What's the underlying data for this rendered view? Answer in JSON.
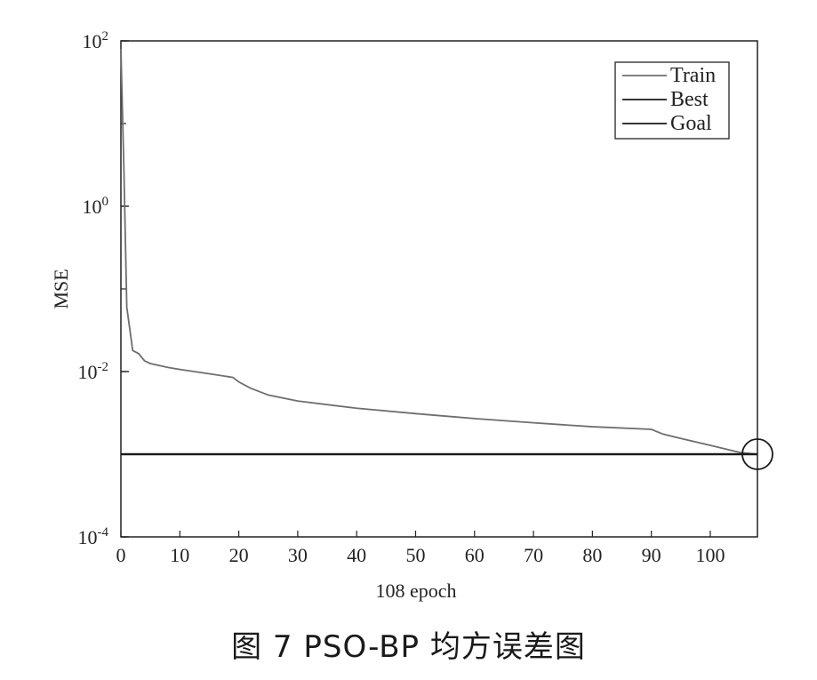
{
  "caption": "图 7   PSO-BP 均方误差图",
  "chart_data": {
    "type": "line",
    "xlabel": "108 epoch",
    "ylabel": "MSE",
    "xlim": [
      0,
      108
    ],
    "ylim": [
      0.0001,
      100
    ],
    "yscale": "log",
    "x_ticks": [
      0,
      10,
      20,
      30,
      40,
      50,
      60,
      70,
      80,
      90,
      100
    ],
    "y_ticks": [
      {
        "value": 100,
        "base": "10",
        "exp": "2"
      },
      {
        "value": 1,
        "base": "10",
        "exp": "0"
      },
      {
        "value": 0.01,
        "base": "10",
        "exp": "-2"
      },
      {
        "value": 0.0001,
        "base": "10",
        "exp": "-4"
      }
    ],
    "legend": {
      "placement": "top-right",
      "entries": [
        {
          "name": "Train",
          "color": "#6e6e6e"
        },
        {
          "name": "Best",
          "color": "#1a1a1a"
        },
        {
          "name": "Goal",
          "color": "#1a1a1a"
        }
      ]
    },
    "series": [
      {
        "name": "Train",
        "color": "#6e6e6e",
        "points": [
          [
            0,
            80
          ],
          [
            0.5,
            3
          ],
          [
            1,
            0.06
          ],
          [
            2,
            0.018
          ],
          [
            3,
            0.0165
          ],
          [
            4,
            0.0135
          ],
          [
            5,
            0.0125
          ],
          [
            8,
            0.0112
          ],
          [
            10,
            0.0106
          ],
          [
            15,
            0.0094
          ],
          [
            19,
            0.0085
          ],
          [
            20,
            0.0075
          ],
          [
            22,
            0.0063
          ],
          [
            25,
            0.0052
          ],
          [
            30,
            0.0044
          ],
          [
            40,
            0.0036
          ],
          [
            50,
            0.0031
          ],
          [
            60,
            0.0027
          ],
          [
            70,
            0.0024
          ],
          [
            80,
            0.00215
          ],
          [
            90,
            0.002
          ],
          [
            92,
            0.00175
          ],
          [
            95,
            0.00155
          ],
          [
            100,
            0.00128
          ],
          [
            105,
            0.00105
          ],
          [
            108,
            0.001
          ]
        ]
      },
      {
        "name": "Best",
        "color": "#1a1a1a",
        "points": [
          [
            0,
            0.001
          ],
          [
            108,
            0.001
          ]
        ]
      },
      {
        "name": "Goal",
        "color": "#1a1a1a",
        "points": [
          [
            0,
            0.001
          ],
          [
            108,
            0.001
          ]
        ]
      }
    ],
    "best_marker": {
      "x": 108,
      "y": 0.001
    }
  }
}
